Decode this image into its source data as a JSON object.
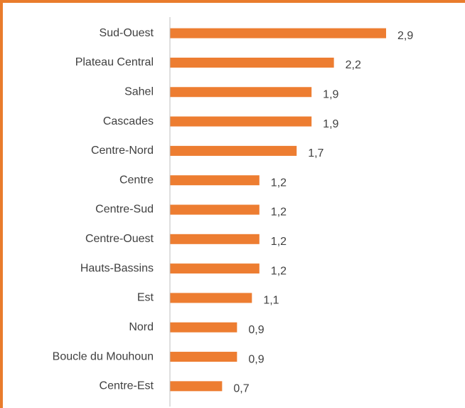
{
  "chart_data": {
    "type": "bar",
    "orientation": "horizontal",
    "categories": [
      "Sud-Ouest",
      "Plateau Central",
      "Sahel",
      "Cascades",
      "Centre-Nord",
      "Centre",
      "Centre-Sud",
      "Centre-Ouest",
      "Hauts-Bassins",
      "Est",
      "Nord",
      "Boucle du Mouhoun",
      "Centre-Est"
    ],
    "values": [
      2.9,
      2.2,
      1.9,
      1.9,
      1.7,
      1.2,
      1.2,
      1.2,
      1.2,
      1.1,
      0.9,
      0.9,
      0.7
    ],
    "value_labels": [
      "2,9",
      "2,2",
      "1,9",
      "1,9",
      "1,7",
      "1,2",
      "1,2",
      "1,2",
      "1,2",
      "1,1",
      "0,9",
      "0,9",
      "0,7"
    ],
    "color": "#ed7d31",
    "xlim": [
      0,
      3
    ]
  }
}
